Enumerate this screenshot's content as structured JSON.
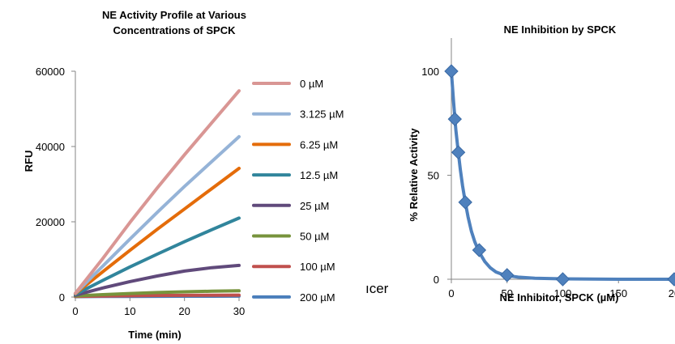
{
  "chart_data": [
    {
      "type": "line",
      "title_lines": [
        "NE Activity Profile at Various",
        "Concentrations of SPCK"
      ],
      "xlabel": "Time (min)",
      "ylabel": "RFU",
      "xlim": [
        0,
        30
      ],
      "ylim": [
        0,
        60000
      ],
      "xticks": [
        "0",
        "10",
        "20",
        "30"
      ],
      "yticks": [
        "0",
        "20000",
        "40000",
        "60000"
      ],
      "grid": false,
      "legend_position": "right",
      "x": [
        0,
        5,
        10,
        15,
        20,
        25,
        30
      ],
      "series": [
        {
          "name": "0 µM",
          "color": "#d99694",
          "values": [
            1000,
            10200,
            19800,
            29000,
            37800,
            46300,
            54800
          ]
        },
        {
          "name": "3.125 µM",
          "color": "#95b3d7",
          "values": [
            1000,
            8200,
            15400,
            22500,
            29400,
            36000,
            42600
          ]
        },
        {
          "name": "6.25 µM",
          "color": "#e46c0a",
          "values": [
            900,
            6700,
            12400,
            18000,
            23400,
            28800,
            34200
          ]
        },
        {
          "name": "12.5 µM",
          "color": "#31859c",
          "values": [
            700,
            4400,
            8000,
            11400,
            14700,
            17900,
            21000
          ]
        },
        {
          "name": "25 µM",
          "color": "#604a7b",
          "values": [
            500,
            2400,
            4100,
            5600,
            6900,
            7800,
            8400
          ]
        },
        {
          "name": "50 µM",
          "color": "#77933c",
          "values": [
            300,
            650,
            950,
            1200,
            1400,
            1550,
            1650
          ]
        },
        {
          "name": "100 µM",
          "color": "#c0504d",
          "values": [
            150,
            250,
            350,
            420,
            460,
            500,
            520
          ]
        },
        {
          "name": "200 µM",
          "color": "#4a7ebb",
          "values": [
            100,
            150,
            180,
            200,
            210,
            220,
            230
          ]
        }
      ]
    },
    {
      "type": "line",
      "title": "NE Inhibition by SPCK",
      "xlabel": "NE Inhibitor, SPCK (µM)",
      "ylabel": "% Relative Activity",
      "xlim": [
        0,
        200
      ],
      "ylim": [
        0,
        100
      ],
      "xticks": [
        "0",
        "50",
        "100",
        "150",
        "20"
      ],
      "yticks": [
        "0",
        "50",
        "100"
      ],
      "grid": false,
      "marker": "diamond",
      "color": "#4f81bd",
      "points": [
        {
          "x": 0,
          "y": 100
        },
        {
          "x": 3.125,
          "y": 77
        },
        {
          "x": 6.25,
          "y": 61
        },
        {
          "x": 12.5,
          "y": 37
        },
        {
          "x": 25,
          "y": 14
        },
        {
          "x": 50,
          "y": 2
        },
        {
          "x": 100,
          "y": 0
        },
        {
          "x": 200,
          "y": 0
        }
      ],
      "fit_curve": [
        [
          0,
          100
        ],
        [
          2,
          85
        ],
        [
          4,
          72
        ],
        [
          6,
          62
        ],
        [
          8,
          53
        ],
        [
          10,
          45
        ],
        [
          12.5,
          37
        ],
        [
          15,
          30
        ],
        [
          18,
          23
        ],
        [
          21,
          18
        ],
        [
          25,
          13
        ],
        [
          30,
          8.5
        ],
        [
          35,
          5.5
        ],
        [
          40,
          3.5
        ],
        [
          45,
          2.5
        ],
        [
          50,
          1.8
        ],
        [
          60,
          1
        ],
        [
          75,
          0.5
        ],
        [
          100,
          0.2
        ],
        [
          150,
          0
        ],
        [
          200,
          0
        ]
      ]
    }
  ],
  "stray_text": "ıcer"
}
